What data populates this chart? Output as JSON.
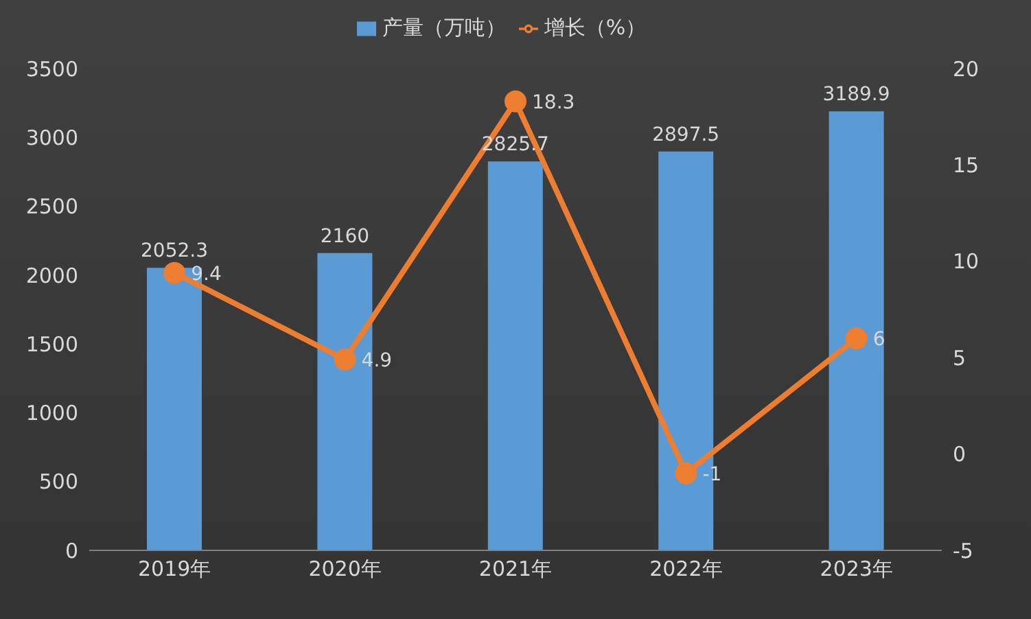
{
  "chart_data": {
    "type": "bar",
    "categories": [
      "2019年",
      "2020年",
      "2021年",
      "2022年",
      "2023年"
    ],
    "series": [
      {
        "name": "产量（万吨）",
        "color": "#5b9bd5",
        "values": [
          2052.3,
          2160,
          2825.7,
          2897.5,
          3189.9
        ]
      },
      {
        "name": "增长（%）",
        "type": "line",
        "axis": "y2",
        "color": "#ed7d31",
        "values": [
          9.4,
          4.9,
          18.3,
          -1,
          6
        ]
      }
    ],
    "ylim": [
      0,
      3500
    ],
    "yticks": [
      0,
      500,
      1000,
      1500,
      2000,
      2500,
      3000,
      3500
    ],
    "y2lim": [
      -5,
      20
    ],
    "y2ticks": [
      -5,
      0,
      5,
      10,
      15,
      20
    ],
    "data_labels": true,
    "legend": "top",
    "grid": false,
    "marker": "circle"
  }
}
